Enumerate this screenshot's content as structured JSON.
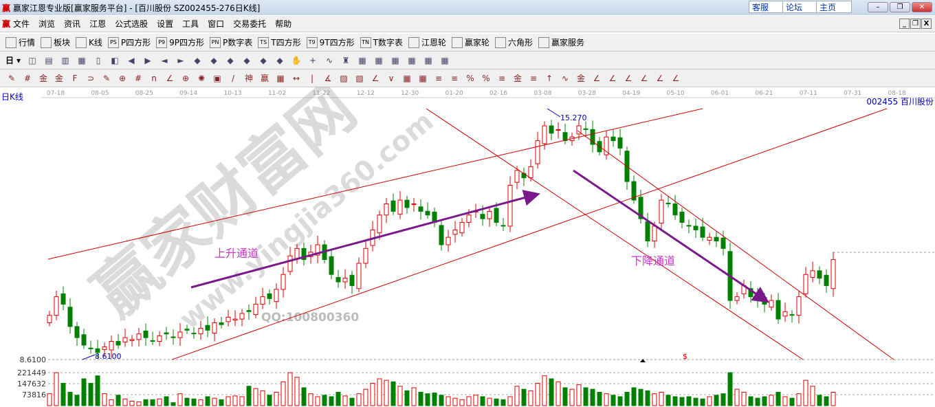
{
  "window": {
    "title": "赢家江恩专业版[赢家服务平台] - [百川股份  SZ002455-276日K线]",
    "buttons": [
      "客服",
      "论坛",
      "主页"
    ]
  },
  "menu": [
    "文件",
    "浏览",
    "资讯",
    "江恩",
    "公式选股",
    "设置",
    "工具",
    "窗口",
    "交易委托",
    "帮助"
  ],
  "toolbar1": [
    {
      "icon": "table-icon",
      "label": "行情"
    },
    {
      "icon": "blocks-icon",
      "label": "板块"
    },
    {
      "icon": "candles-icon",
      "label": "K线"
    },
    {
      "icon": "PS",
      "label": "P四方形"
    },
    {
      "icon": "P9",
      "label": "9P四方形"
    },
    {
      "icon": "PN",
      "label": "P数字表"
    },
    {
      "icon": "TS",
      "label": "T四方形"
    },
    {
      "icon": "T9",
      "label": "9T四方形"
    },
    {
      "icon": "TN",
      "label": "T数字表"
    },
    {
      "icon": "target-icon",
      "label": "江恩轮"
    },
    {
      "icon": "wheel-icon",
      "label": "赢家轮"
    },
    {
      "icon": "hexagon-icon",
      "label": "六角形"
    },
    {
      "icon": "dollar-icon",
      "label": "赢家服务"
    }
  ],
  "toolbar2": {
    "period": "日"
  },
  "chart": {
    "period_label": "日K线",
    "stock": "002455  百川股份",
    "date_ticks": [
      "07-18",
      "08-05",
      "08-25",
      "09-14",
      "10-13",
      "11-02",
      "11-22",
      "12-12",
      "12-30",
      "01-20",
      "02-16",
      "03-08",
      "03-28",
      "04-19",
      "05-10",
      "06-01",
      "06-21",
      "07-11",
      "07-31",
      "08-18"
    ],
    "high_label": "15.270",
    "low_label": "8.6100",
    "price_axis_label": "8.6100",
    "volume_ticks": [
      "221449",
      "147632",
      "73816"
    ],
    "annotations": {
      "up": "上升通道",
      "down": "下降通道"
    },
    "watermark": {
      "name": "赢家财富网",
      "url": "www.yingjia360.com",
      "qq": "QQ:100800360"
    },
    "marker": "$",
    "colors": {
      "up": "#e00000",
      "down": "#008000",
      "channel": "#cc0000",
      "arrow": "#7a1a8a",
      "annotation": "#cc33cc"
    }
  },
  "chart_data": {
    "type": "candlestick",
    "price_range": [
      8.61,
      15.27
    ],
    "closes": [
      9.8,
      10.3,
      10.1,
      9.5,
      9.2,
      9.0,
      8.9,
      8.8,
      8.95,
      9.1,
      9.0,
      9.2,
      9.15,
      9.3,
      9.2,
      9.1,
      9.25,
      9.3,
      9.2,
      9.35,
      9.4,
      9.3,
      9.45,
      9.4,
      9.6,
      9.55,
      9.75,
      9.7,
      9.85,
      9.9,
      10.1,
      10.3,
      10.25,
      10.5,
      10.9,
      11.4,
      11.6,
      11.3,
      11.5,
      11.7,
      11.3,
      10.9,
      10.7,
      10.8,
      10.6,
      11.2,
      11.6,
      12.1,
      12.5,
      12.8,
      12.6,
      12.9,
      12.7,
      12.8,
      12.6,
      12.5,
      12.3,
      11.7,
      11.9,
      12.1,
      12.3,
      12.5,
      12.6,
      12.4,
      12.6,
      12.3,
      12.2,
      13.3,
      13.7,
      13.5,
      13.8,
      14.5,
      14.9,
      14.7,
      14.8,
      14.5,
      14.6,
      14.9,
      14.8,
      14.4,
      14.2,
      14.6,
      14.5,
      14.3,
      13.4,
      12.9,
      12.4,
      11.8,
      12.2,
      12.9,
      12.8,
      12.5,
      12.3,
      12.2,
      12.1,
      11.9,
      11.9,
      11.8,
      11.6,
      10.2,
      10.3,
      10.6,
      10.3,
      10.2,
      10.1,
      10.2,
      9.7,
      9.9,
      9.8,
      10.3,
      10.9,
      11.0,
      10.8,
      10.6,
      11.3
    ],
    "volumes": [
      80000,
      221449,
      150000,
      90000,
      70000,
      180000,
      150000,
      200000,
      80000,
      40000,
      70000,
      45000,
      30000,
      25000,
      40000,
      40000,
      45000,
      60000,
      20000,
      80000,
      50000,
      45000,
      40000,
      60000,
      50000,
      40000,
      60000,
      65000,
      60000,
      130000,
      115000,
      100000,
      70000,
      90000,
      160000,
      221449,
      190000,
      120000,
      80000,
      60000,
      70000,
      60000,
      90000,
      65000,
      50000,
      80000,
      110000,
      150000,
      180000,
      170000,
      160000,
      130000,
      100000,
      120000,
      90000,
      80000,
      85000,
      70000,
      60000,
      50000,
      40000,
      60000,
      70000,
      60000,
      50000,
      45000,
      40000,
      60000,
      130000,
      110000,
      100000,
      150000,
      200000,
      180000,
      160000,
      120000,
      110000,
      140000,
      120000,
      110000,
      90000,
      80000,
      70000,
      60000,
      90000,
      120000,
      110000,
      100000,
      80000,
      90000,
      70000,
      60000,
      55000,
      60000,
      50000,
      45000,
      60000,
      70000,
      80000,
      221449,
      110000,
      90000,
      60000,
      50000,
      60000,
      70000,
      90000,
      60000,
      50000,
      80000,
      170000,
      130000,
      70000,
      60000,
      90000
    ]
  }
}
